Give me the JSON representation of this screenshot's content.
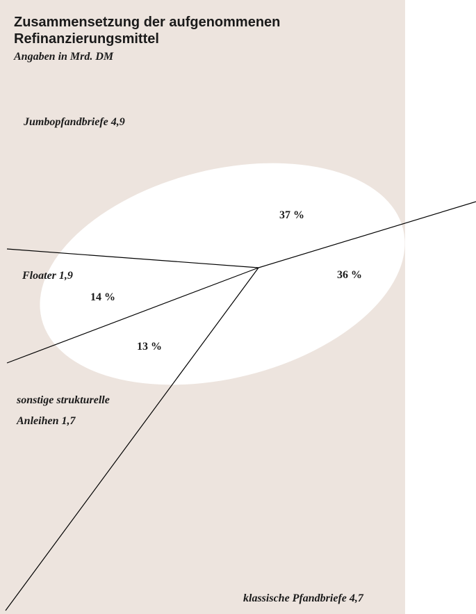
{
  "chart_data": {
    "type": "pie",
    "title_lines": [
      "Zusammensetzung der aufgenommenen",
      "Refinanzierungsmittel"
    ],
    "subtitle": "Angaben in Mrd. DM",
    "slices": [
      {
        "label": "Jumbopfandbriefe 4,9",
        "value": 4.9,
        "percent_label": "37 %"
      },
      {
        "label": "klassische Pfandbriefe 4,7",
        "value": 4.7,
        "percent_label": "36 %"
      },
      {
        "label_lines": [
          "sonstige strukturelle",
          "Anleihen 1,7"
        ],
        "value": 1.7,
        "percent_label": "13 %"
      },
      {
        "label": "Floater 1,9",
        "value": 1.9,
        "percent_label": "14 %"
      }
    ],
    "colors": {
      "panel": "#ede4de",
      "ellipse": "#ffffff",
      "lines": "#000000",
      "text": "#1a1a1a"
    }
  }
}
